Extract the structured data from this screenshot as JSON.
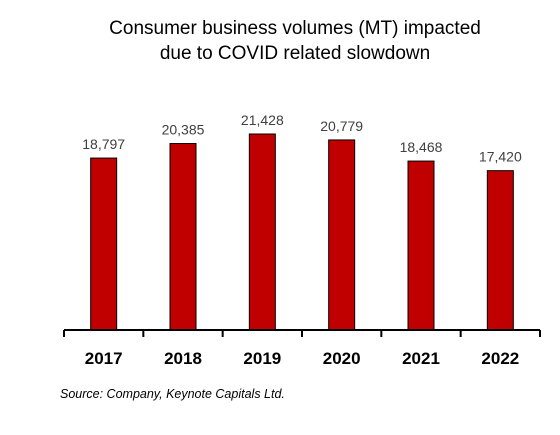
{
  "chart_data": {
    "type": "bar",
    "title_lines": [
      "Consumer business volumes (MT) impacted",
      "due to COVID related slowdown"
    ],
    "categories": [
      "2017",
      "2018",
      "2019",
      "2020",
      "2021",
      "2022"
    ],
    "values": [
      18797,
      20385,
      21428,
      20779,
      18468,
      17420
    ],
    "data_labels": [
      "18,797",
      "20,385",
      "21,428",
      "20,779",
      "18,468",
      "17,420"
    ],
    "xlabel": "",
    "ylabel": "",
    "ylim": [
      0,
      21428
    ],
    "grid": false,
    "legend": "none",
    "bar_color": "#C00000",
    "bar_edge_color": "#000000"
  },
  "source_note": "Source: Company, Keynote Capitals Ltd."
}
